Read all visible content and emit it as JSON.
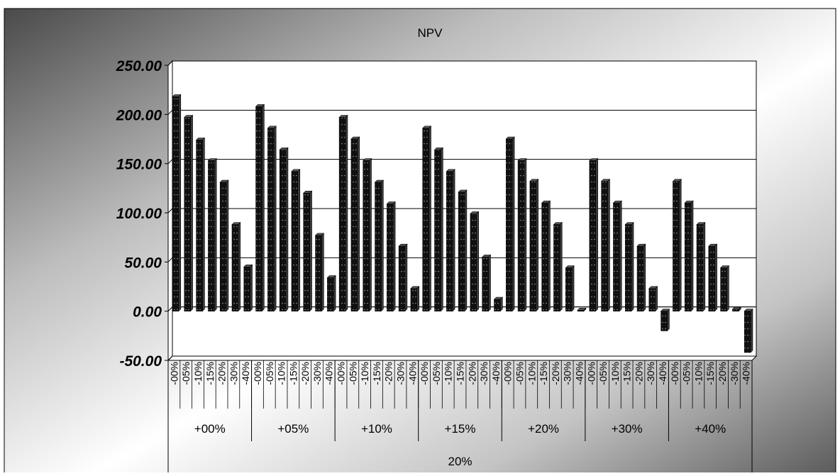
{
  "chart_data": {
    "type": "bar",
    "title": "NPV",
    "ylim": [
      -50,
      250
    ],
    "y_ticks": [
      -50,
      0,
      50,
      100,
      150,
      200,
      250
    ],
    "y_tick_labels": [
      "-50.00",
      "0.00",
      "50.00",
      "100.00",
      "150.00",
      "200.00",
      "250.00"
    ],
    "grid": true,
    "legend": "none",
    "colors": {
      "bar": "#111111",
      "bar_side": "#3a3a3a",
      "bar_dots": "#9a9a9a",
      "plot_bg": "#ffffff",
      "grid": "#000000"
    },
    "outer_group_label": "20%",
    "groups": [
      {
        "label": "+00%",
        "categories": [
          "-00%",
          "-05%",
          "-10%",
          "-15%",
          "-20%",
          "-30%",
          "-40%"
        ],
        "values": [
          218,
          197,
          174,
          153,
          131,
          88,
          45
        ]
      },
      {
        "label": "+05%",
        "categories": [
          "-00%",
          "-05%",
          "-10%",
          "-15%",
          "-20%",
          "-30%",
          "-40%"
        ],
        "values": [
          208,
          186,
          164,
          142,
          120,
          77,
          34
        ]
      },
      {
        "label": "+10%",
        "categories": [
          "-00%",
          "-05%",
          "-10%",
          "-15%",
          "-20%",
          "-30%",
          "-40%"
        ],
        "values": [
          197,
          175,
          153,
          131,
          109,
          66,
          23
        ]
      },
      {
        "label": "+15%",
        "categories": [
          "-00%",
          "-05%",
          "-10%",
          "-15%",
          "-20%",
          "-30%",
          "-40%"
        ],
        "values": [
          186,
          164,
          142,
          121,
          99,
          55,
          12
        ]
      },
      {
        "label": "+20%",
        "categories": [
          "-00%",
          "-05%",
          "-10%",
          "-15%",
          "-20%",
          "-30%",
          "-40%"
        ],
        "values": [
          175,
          153,
          132,
          110,
          88,
          44,
          1
        ]
      },
      {
        "label": "+30%",
        "categories": [
          "-00%",
          "-05%",
          "-10%",
          "-15%",
          "-20%",
          "-30%",
          "-40%"
        ],
        "values": [
          153,
          132,
          110,
          88,
          66,
          23,
          -20
        ]
      },
      {
        "label": "+40%",
        "categories": [
          "-00%",
          "-05%",
          "-10%",
          "-15%",
          "-20%",
          "-30%",
          "-40%"
        ],
        "values": [
          132,
          110,
          88,
          66,
          44,
          2,
          -42
        ]
      }
    ]
  }
}
